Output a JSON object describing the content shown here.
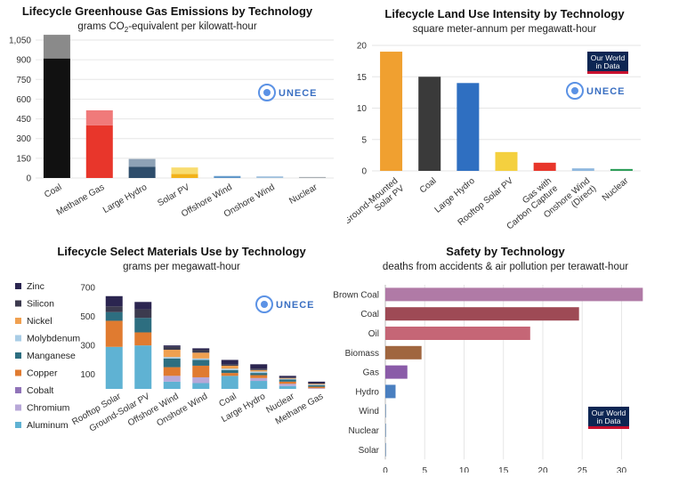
{
  "brands": {
    "unece": "UNECE",
    "owid_line1": "Our World",
    "owid_line2": "in Data"
  },
  "chart_data": [
    {
      "id": "ghg",
      "type": "bar",
      "title": "Lifecycle Greenhouse Gas Emissions by Technology",
      "subtitle_pre": "grams CO",
      "subtitle_sub": "2",
      "subtitle_post": "-equivalent per kilowatt-hour",
      "ylim": [
        0,
        1050
      ],
      "yticks": [
        0,
        150,
        300,
        450,
        600,
        750,
        900,
        "1,050"
      ],
      "grid": true,
      "categories": [
        "Coal",
        "Methane Gas",
        "Large Hydro",
        "Solar PV",
        "Offshore Wind",
        "Onshore Wind",
        "Nuclear"
      ],
      "series": [
        {
          "values": [
            910,
            400,
            85,
            30,
            13,
            12,
            6
          ],
          "colors": [
            "#111111",
            "#e8362b",
            "#2e4d6b",
            "#f2b21a",
            "#5b93c7",
            "#9ebfdc",
            "#9aa0a6"
          ]
        },
        {
          "values": [
            180,
            115,
            60,
            50,
            3,
            2,
            2
          ],
          "colors": [
            "#8a8a8a",
            "#f07a7a",
            "#8ea2b6",
            "#f8dc70",
            "#9cc0e0",
            "#c6dbee",
            "#c6c9cc"
          ]
        }
      ]
    },
    {
      "id": "land",
      "type": "bar",
      "title": "Lifecycle Land Use Intensity by Technology",
      "subtitle": "square meter-annum per megawatt-hour",
      "ylim": [
        0,
        20
      ],
      "yticks": [
        0,
        5,
        10,
        15,
        20
      ],
      "grid": true,
      "categories": [
        "Ground-Mounted Solar PV",
        "Coal",
        "Large Hydro",
        "Rooftop Solar PV",
        "Gas with Carbon Capture",
        "Onshore Wind (Direct)",
        "Nuclear"
      ],
      "category_lines": [
        [
          "Ground-Mounted",
          "Solar PV"
        ],
        [
          "Coal"
        ],
        [
          "Large Hydro"
        ],
        [
          "Rooftop Solar PV"
        ],
        [
          "Gas with",
          "Carbon Capture"
        ],
        [
          "Onshore Wind",
          "(Direct)"
        ],
        [
          "Nuclear"
        ]
      ],
      "values": [
        19,
        15,
        14,
        3,
        1.3,
        0.4,
        0.3
      ],
      "colors": [
        "#f0a030",
        "#3a3a3a",
        "#2f6fc1",
        "#f4d03f",
        "#e8362b",
        "#8fb8de",
        "#2e9e5a"
      ]
    },
    {
      "id": "materials",
      "type": "bar",
      "title": "Lifecycle Select Materials Use by Technology",
      "subtitle": "grams per megawatt-hour",
      "ylim": [
        0,
        700
      ],
      "yticks": [
        100,
        300,
        500,
        700
      ],
      "grid": false,
      "categories": [
        "Rooftop Solar",
        "Ground-Solar PV",
        "Offshore Wind",
        "Onshore Wind",
        "Coal",
        "Large Hydro",
        "Nuclear",
        "Methane Gas"
      ],
      "series": [
        {
          "name": "Aluminum",
          "color": "#5fb2d3",
          "values": [
            290,
            300,
            50,
            40,
            90,
            55,
            20,
            0
          ]
        },
        {
          "name": "Chromium",
          "color": "#b8a8d8",
          "values": [
            0,
            0,
            40,
            40,
            0,
            20,
            15,
            5
          ]
        },
        {
          "name": "Cobalt",
          "color": "#9073b8",
          "values": [
            0,
            0,
            0,
            0,
            0,
            0,
            0,
            0
          ]
        },
        {
          "name": "Copper",
          "color": "#e07b30",
          "values": [
            180,
            90,
            60,
            80,
            20,
            20,
            15,
            10
          ]
        },
        {
          "name": "Manganese",
          "color": "#2d6e80",
          "values": [
            60,
            100,
            60,
            40,
            20,
            15,
            15,
            10
          ]
        },
        {
          "name": "Molybdenum",
          "color": "#a9cde6",
          "values": [
            0,
            0,
            10,
            10,
            10,
            10,
            5,
            5
          ]
        },
        {
          "name": "Nickel",
          "color": "#f0a050",
          "values": [
            0,
            0,
            50,
            40,
            20,
            10,
            5,
            5
          ]
        },
        {
          "name": "Silicon",
          "color": "#3c3a4e",
          "values": [
            40,
            60,
            20,
            20,
            10,
            10,
            5,
            5
          ]
        },
        {
          "name": "Zinc",
          "color": "#2b2550",
          "values": [
            70,
            50,
            10,
            10,
            30,
            30,
            10,
            10
          ]
        }
      ]
    },
    {
      "id": "safety",
      "type": "bar",
      "orientation": "horizontal",
      "title": "Safety by Technology",
      "subtitle": "deaths from accidents & air pollution per terawatt-hour",
      "xlim": [
        0,
        33
      ],
      "xticks": [
        0,
        5,
        10,
        15,
        20,
        25,
        30
      ],
      "grid": true,
      "categories": [
        "Brown Coal",
        "Coal",
        "Oil",
        "Biomass",
        "Gas",
        "Hydro",
        "Wind",
        "Nuclear",
        "Solar"
      ],
      "values": [
        32.7,
        24.6,
        18.4,
        4.6,
        2.8,
        1.3,
        0.04,
        0.03,
        0.02
      ],
      "colors": [
        "#b07aa6",
        "#9e4a55",
        "#c56676",
        "#a0663f",
        "#8a5ba8",
        "#4a7fc0",
        "#6d8fb3",
        "#6d8fb3",
        "#6d8fb3"
      ]
    }
  ]
}
